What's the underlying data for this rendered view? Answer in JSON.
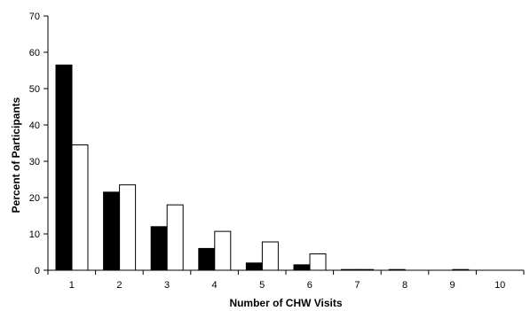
{
  "chart_data": {
    "type": "bar",
    "xlabel": "Number of CHW Visits",
    "ylabel": "Percent of Participants",
    "categories": [
      "1",
      "2",
      "3",
      "4",
      "5",
      "6",
      "7",
      "8",
      "9",
      "10"
    ],
    "series": [
      {
        "values": [
          56.5,
          21.5,
          12.0,
          6.0,
          2.0,
          1.5,
          0.2,
          0.2,
          0.0,
          0.0
        ],
        "color": "#000000"
      },
      {
        "values": [
          34.5,
          23.5,
          18.0,
          10.7,
          7.8,
          4.5,
          0.2,
          0.0,
          0.2,
          0.0
        ],
        "color": "#ffffff"
      }
    ],
    "ylim": [
      0,
      70
    ],
    "yticks": [
      0,
      10,
      20,
      30,
      40,
      50,
      60,
      70
    ],
    "grid": false,
    "legend": "none"
  }
}
